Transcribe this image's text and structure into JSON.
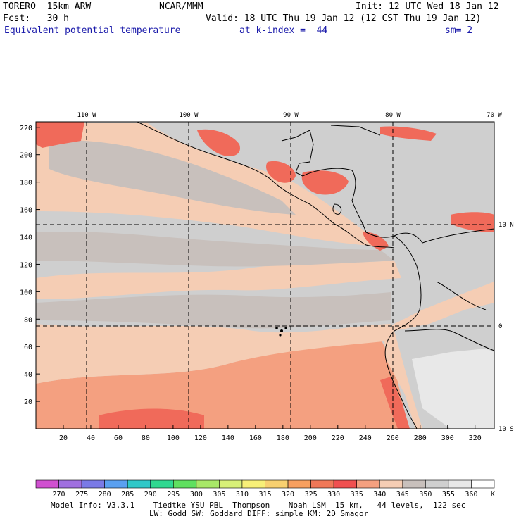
{
  "header": {
    "model": "TORERO  15km ARW",
    "org": "NCAR/MMM",
    "init": "Init: 12 UTC Wed 18 Jan 12",
    "fcst": "Fcst:   30 h",
    "valid": "Valid: 18 UTC Thu 19 Jan 12 (12 CST Thu 19 Jan 12)",
    "field": "Equivalent potential temperature",
    "level": "at k-index =  44",
    "smooth": "sm= 2"
  },
  "map": {
    "top_lon_labels": [
      "110 W",
      "100 W",
      "90 W",
      "80 W",
      "70 W"
    ],
    "right_lat_labels": [
      "10 N",
      "0",
      "10 S"
    ],
    "y_ticks": [
      "220",
      "200",
      "180",
      "160",
      "140",
      "120",
      "100",
      "80",
      "60",
      "40",
      "20"
    ],
    "x_ticks": [
      "20",
      "40",
      "60",
      "80",
      "100",
      "120",
      "140",
      "160",
      "180",
      "200",
      "220",
      "240",
      "260",
      "280",
      "300",
      "320"
    ],
    "colors": {
      "lt340": "#f4a080",
      "c340": "#f5cdb4",
      "c345": "#c8c0bc",
      "c350": "#cfcfcf",
      "c355": "#e8e8e8",
      "hot": "#f06a5a",
      "coast": "#000000"
    }
  },
  "colorbar": {
    "labels": [
      "270",
      "275",
      "280",
      "285",
      "290",
      "295",
      "300",
      "305",
      "310",
      "315",
      "320",
      "325",
      "330",
      "335",
      "340",
      "345",
      "350",
      "355",
      "360"
    ],
    "unit": "K",
    "colors": [
      "#d050d0",
      "#a070e0",
      "#7a7ae6",
      "#5aa0f0",
      "#30c8c8",
      "#30d890",
      "#60e060",
      "#a8e868",
      "#d8f078",
      "#f8f078",
      "#f8d070",
      "#f8a060",
      "#f07858",
      "#f05050",
      "#f4a080",
      "#f5cdb4",
      "#c8c0bc",
      "#cfcfcf",
      "#e8e8e8",
      "#ffffff"
    ]
  },
  "footer": {
    "line1": "Model Info: V3.3.1    Tiedtke YSU PBL  Thompson    Noah LSM  15 km,   44 levels,  122 sec",
    "line2": "LW: Godd SW: Goddard DIFF: simple KM: 2D Smagor"
  }
}
